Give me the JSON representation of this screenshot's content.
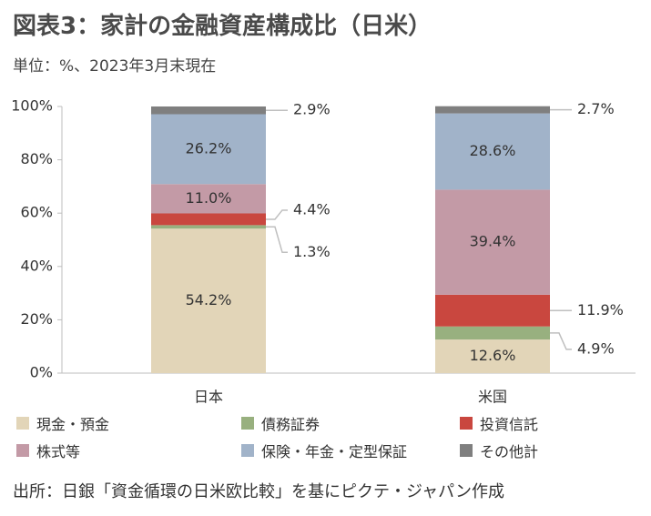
{
  "title": "図表3：家計の金融資産構成比（日米）",
  "unit": "単位：%、2023年3月末現在",
  "source": "出所：日銀「資金循環の日米欧比較」を基にピクテ・ジャパン作成",
  "chart_data": {
    "type": "bar",
    "stacked": true,
    "categories": [
      "日本",
      "米国"
    ],
    "ylim": [
      0,
      100
    ],
    "yticks": [
      "0%",
      "20%",
      "40%",
      "60%",
      "80%",
      "100%"
    ],
    "grid": false,
    "legend_position": "bottom",
    "series": [
      {
        "name": "現金・預金",
        "values": [
          54.2,
          12.6
        ],
        "labels": [
          "54.2%",
          "12.6%"
        ],
        "color": "#e2d5b8"
      },
      {
        "name": "債務証券",
        "values": [
          1.3,
          4.9
        ],
        "labels": [
          "1.3%",
          "4.9%"
        ],
        "color": "#98b07f"
      },
      {
        "name": "投資信託",
        "values": [
          4.4,
          11.9
        ],
        "labels": [
          "4.4%",
          "11.9%"
        ],
        "color": "#c9473f"
      },
      {
        "name": "株式等",
        "values": [
          11.0,
          39.4
        ],
        "labels": [
          "11.0%",
          "39.4%"
        ],
        "color": "#c39aa6"
      },
      {
        "name": "保険・年金・定型保証",
        "values": [
          26.2,
          28.6
        ],
        "labels": [
          "26.2%",
          "28.6%"
        ],
        "color": "#a1b3c9"
      },
      {
        "name": "その他計",
        "values": [
          2.9,
          2.7
        ],
        "labels": [
          "2.9%",
          "2.7%"
        ],
        "color": "#7f7f7f"
      }
    ]
  }
}
